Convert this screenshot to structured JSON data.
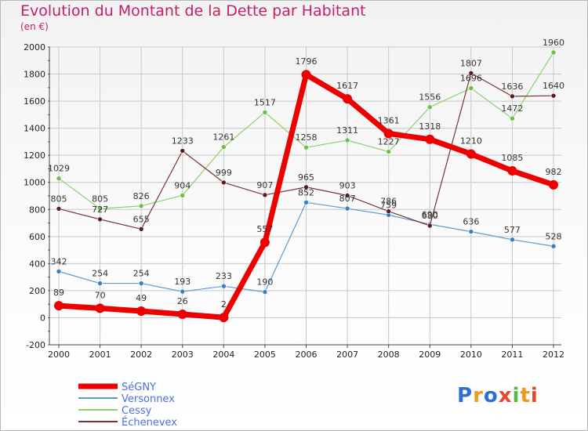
{
  "header": {
    "title": "Evolution du Montant de la Dette par Habitant",
    "subtitle": "(en €)"
  },
  "logo": {
    "text": "Proxiti"
  },
  "colors": {
    "title": "#c41e6a",
    "grid": "#c8c8c8",
    "axis_tick_red": "#d63030",
    "legend_text": "#4a6fe0"
  },
  "chart_data": {
    "type": "line",
    "title": "Evolution du Montant de la Dette par Habitant",
    "subtitle": "(en €)",
    "x": [
      "2000",
      "2001",
      "2002",
      "2003",
      "2004",
      "2005",
      "2006",
      "2007",
      "2008",
      "2009",
      "2010",
      "2011",
      "2012"
    ],
    "ylim": [
      -200,
      2000
    ],
    "yticks": [
      -200,
      0,
      200,
      400,
      600,
      800,
      1000,
      1200,
      1400,
      1600,
      1800,
      2000
    ],
    "grid": true,
    "legend_position": "bottom-left",
    "series": [
      {
        "name": "Versonnex",
        "color": "#5a9bd4",
        "marker": "#3a7fc4",
        "width": 1.2,
        "values": [
          342,
          254,
          254,
          193,
          233,
          190,
          852,
          807,
          759,
          690,
          636,
          577,
          528
        ],
        "labels": [
          "342",
          "254",
          "254",
          "193",
          "233",
          "190",
          "852",
          "807",
          "759",
          "690",
          "636",
          "577",
          "528"
        ]
      },
      {
        "name": "Cessy",
        "color": "#8ed16a",
        "marker": "#6abf45",
        "width": 1.2,
        "values": [
          1029,
          805,
          826,
          904,
          1261,
          1517,
          1258,
          1311,
          1227,
          1556,
          1696,
          1472,
          1960
        ],
        "labels": [
          "1029",
          "805",
          "826",
          "904",
          "1261",
          "1517",
          "1258",
          "1311",
          "1227",
          "1556",
          "1696",
          "1472",
          "1960"
        ]
      },
      {
        "name": "Échenevex",
        "color": "#7a3535",
        "marker": "#5a1c1c",
        "width": 1.2,
        "values": [
          805,
          727,
          655,
          1233,
          999,
          907,
          965,
          903,
          786,
          680,
          1807,
          1636,
          1640
        ],
        "labels": [
          "805",
          "727",
          "655",
          "1233",
          "999",
          "907",
          "965",
          "903",
          "786",
          "680",
          "1807",
          "1636",
          "1640"
        ]
      },
      {
        "name": "SéGNY",
        "color": "#ee0000",
        "marker": "#ee0000",
        "width": 7,
        "values": [
          89,
          70,
          49,
          26,
          2,
          557,
          1796,
          1617,
          1361,
          1318,
          1210,
          1085,
          982
        ],
        "labels": [
          "89",
          "70",
          "49",
          "26",
          "2",
          "557",
          "1796",
          "1617",
          "1361",
          "1318",
          "1210",
          "1085",
          "982"
        ]
      }
    ],
    "legend": [
      "SéGNY",
      "Versonnex",
      "Cessy",
      "Échenevex"
    ]
  }
}
